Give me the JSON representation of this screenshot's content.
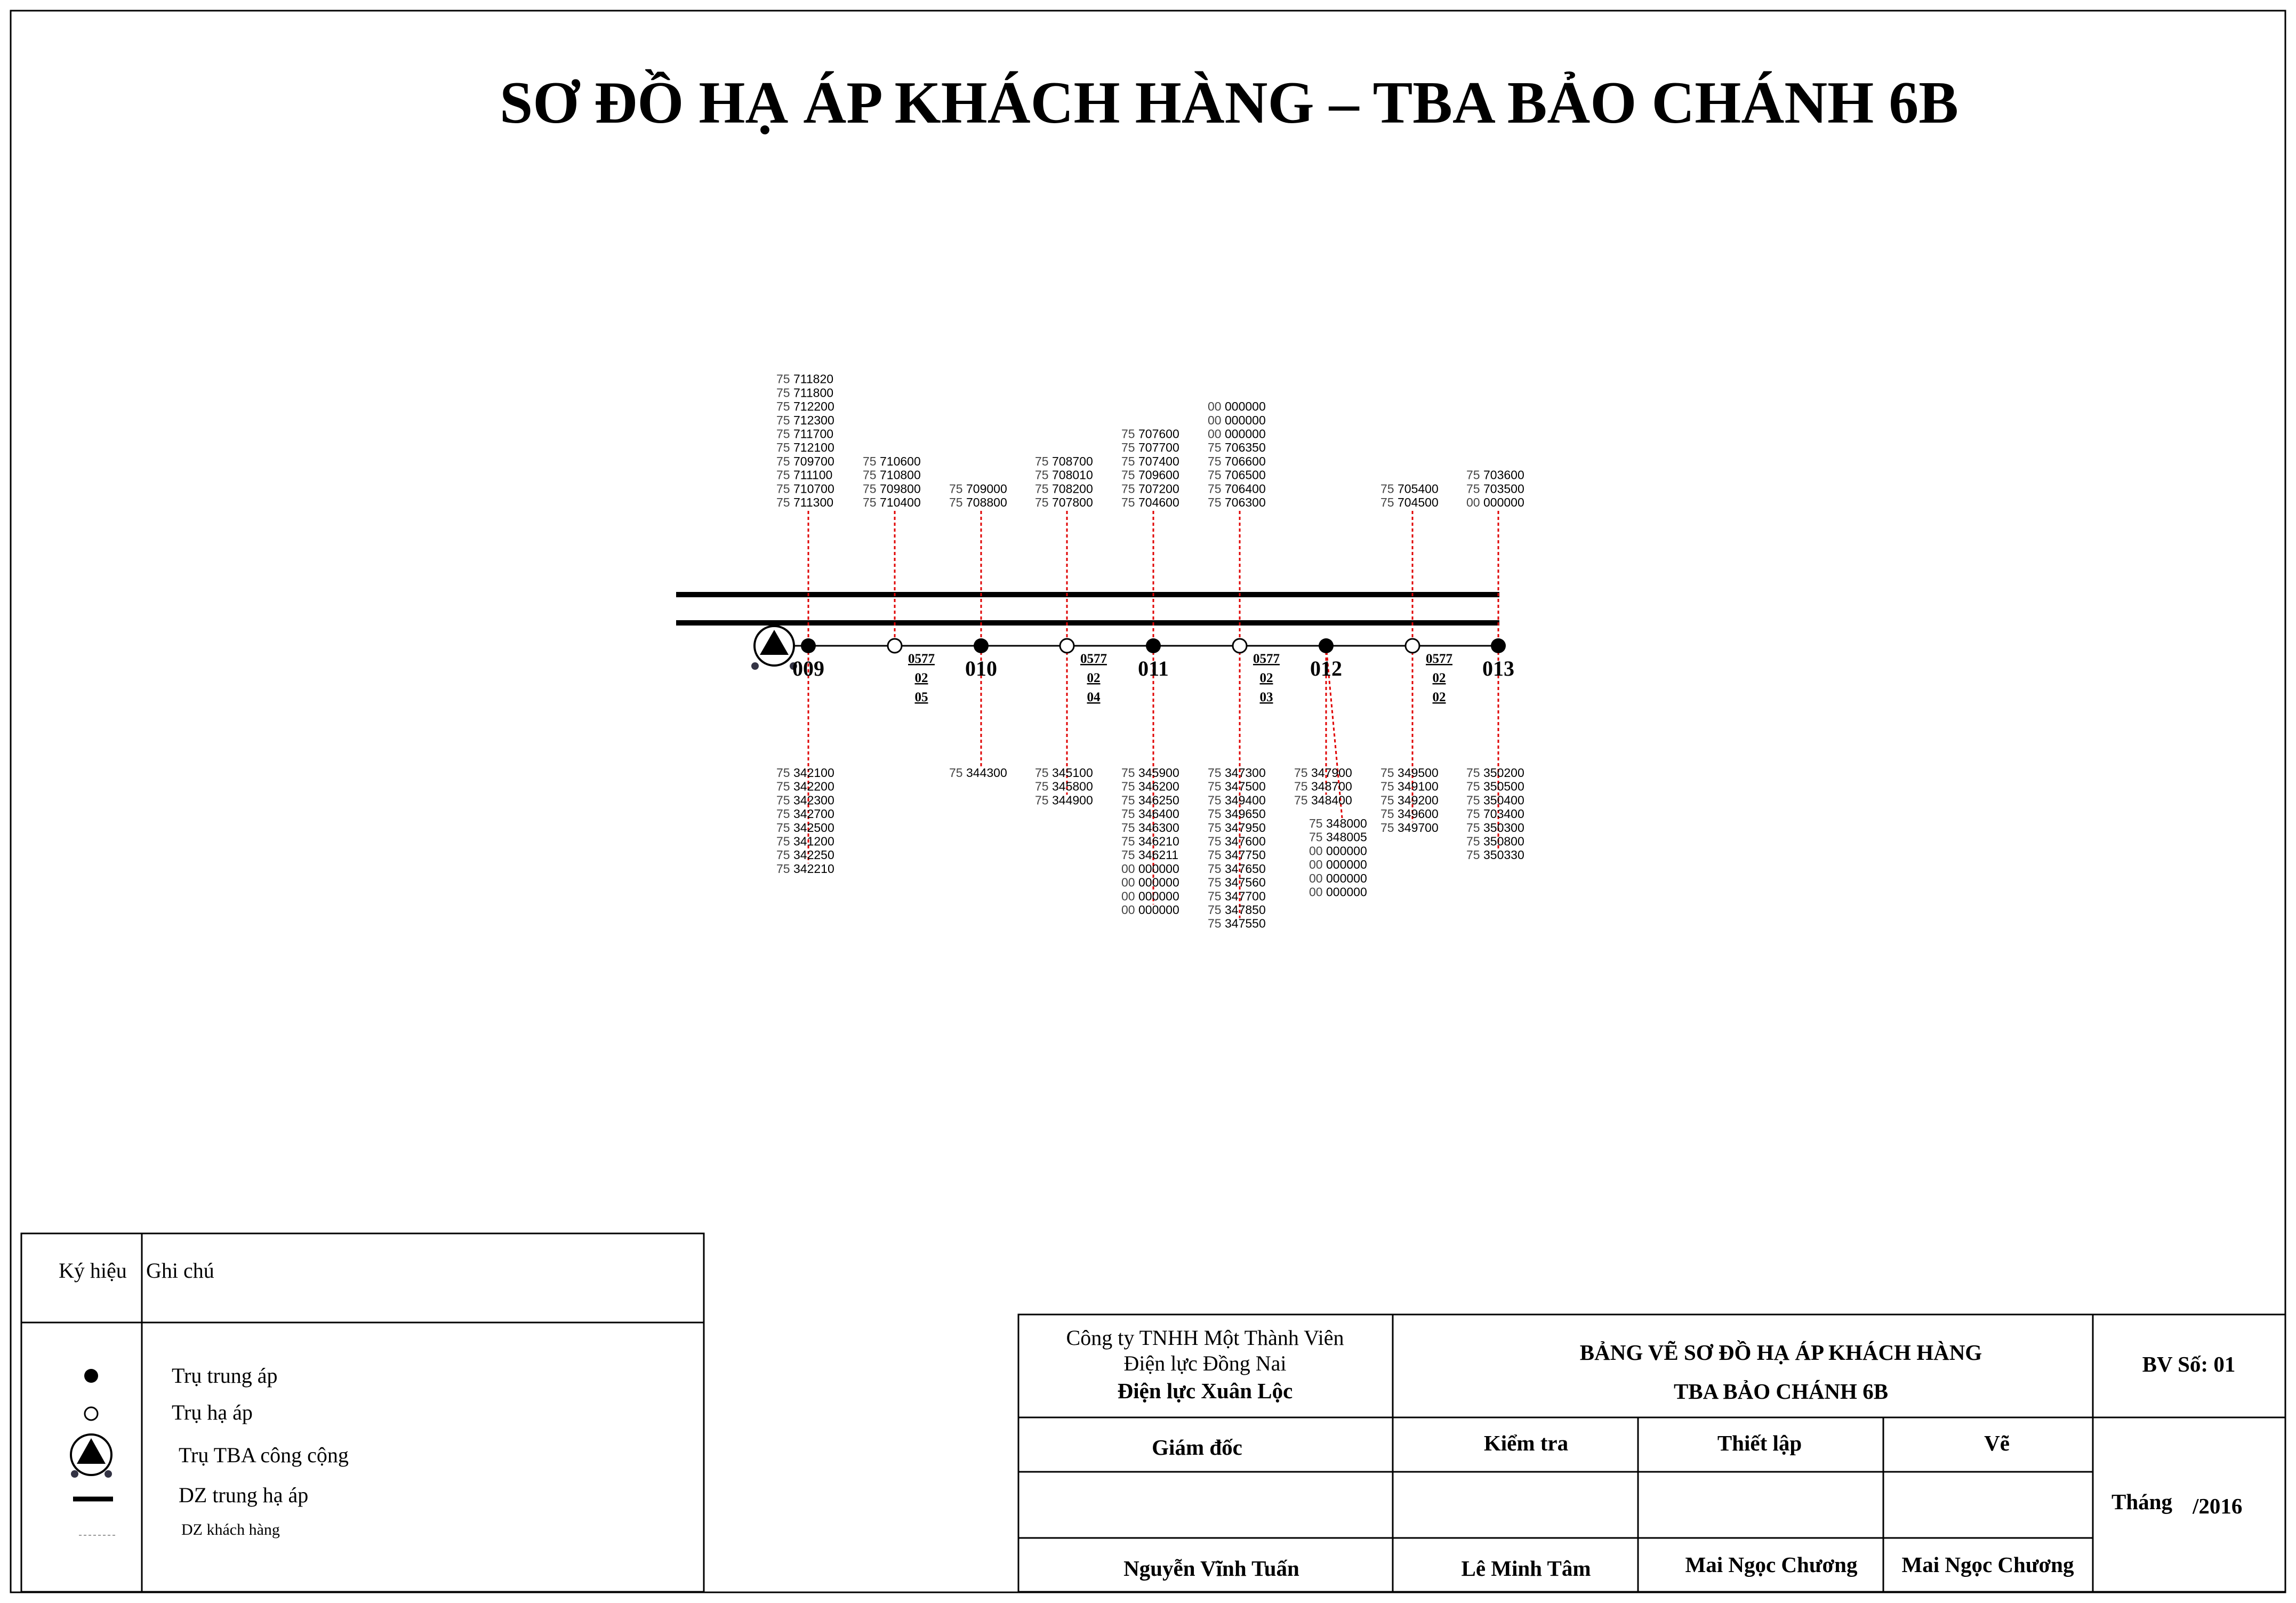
{
  "title": "SƠ ĐỒ HẠ ÁP KHÁCH HÀNG – TBA BẢO CHÁNH 6B",
  "colors": {
    "line": "#000000",
    "customer_line": "#e00000",
    "pole_fill": "#000000",
    "background": "#ffffff"
  },
  "poles": [
    {
      "type": "tba"
    },
    {
      "type": "medium",
      "label": "009"
    },
    {
      "type": "low",
      "branch": [
        "0577",
        "02",
        "05"
      ]
    },
    {
      "type": "medium",
      "label": "010"
    },
    {
      "type": "low",
      "branch": [
        "0577",
        "02",
        "04"
      ]
    },
    {
      "type": "medium",
      "label": "011"
    },
    {
      "type": "low",
      "branch": [
        "0577",
        "02",
        "03"
      ]
    },
    {
      "type": "medium",
      "label": "012"
    },
    {
      "type": "low",
      "branch": [
        "0577",
        "02",
        "02"
      ]
    },
    {
      "type": "medium",
      "label": "013"
    }
  ],
  "customers_top": [
    [
      "75 711820",
      "75 711800",
      "75 712200",
      "75 712300",
      "75 711700",
      "75 712100",
      "75 709700",
      "75 711100",
      "75 710700",
      "75 711300"
    ],
    [
      "75 710600",
      "75 710800",
      "75 709800",
      "75 710400"
    ],
    [
      "75 709000",
      "75 708800"
    ],
    [
      "75 708700",
      "75 708010",
      "75 708200",
      "75 707800"
    ],
    [
      "75 707600",
      "75 707700",
      "75 707400",
      "75 709600",
      "75 707200",
      "75 704600"
    ],
    [
      "00 000000",
      "00 000000",
      "00 000000",
      "75 706350",
      "75 706600",
      "75 706500",
      "75 706400",
      "75 706300"
    ],
    [],
    [
      "75 705400",
      "75 704500"
    ],
    [
      "75 703600",
      "75 703500",
      "00 000000"
    ]
  ],
  "customers_bottom": [
    [
      "75 342100",
      "75 342200",
      "75 342300",
      "75 342700",
      "75 342500",
      "75 341200",
      "75 342250",
      "75 342210"
    ],
    [],
    [
      "75 344300"
    ],
    [
      "75 345100",
      "75 345800",
      "75 344900"
    ],
    [
      "75 345900",
      "75 346200",
      "75 346250",
      "75 346400",
      "75 346300",
      "75 346210",
      "75 346211",
      "00 000000",
      "00 000000",
      "00 000000",
      "00 000000"
    ],
    [
      "75 347300",
      "75 347500",
      "75 349400",
      "75 349650",
      "75 347950",
      "75 347600",
      "75 347750",
      "75 347650",
      "75 347560",
      "75 347700",
      "75 347850",
      "75 347550"
    ],
    [
      "75 347900",
      "75 348700",
      "75 348400"
    ],
    [
      "75 349500",
      "75 349100",
      "75 349200",
      "75 349600",
      "75 349700"
    ],
    [
      "75 350200",
      "75 350500",
      "75 350400",
      "75 703400",
      "75 350300",
      "75 350800",
      "75 350330"
    ]
  ],
  "customers_bottom_extra": [
    "75 348000",
    "75 348005",
    "00 000000",
    "00 000000",
    "00 000000",
    "00 000000"
  ],
  "legend": {
    "col_symbol": "Ký hiệu",
    "col_note": "Ghi chú",
    "items": [
      {
        "icon": "medium-voltage-pole-icon",
        "text": "Trụ trung áp"
      },
      {
        "icon": "low-voltage-pole-icon",
        "text": "Trụ hạ áp"
      },
      {
        "icon": "public-substation-pole-icon",
        "text": "Trụ TBA công cộng"
      },
      {
        "icon": "medium-low-line-icon",
        "text": "DZ trung hạ áp"
      },
      {
        "icon": "customer-line-icon",
        "text": "DZ khách hàng"
      }
    ]
  },
  "title_block": {
    "company_line1": "Công ty TNHH Một Thành Viên",
    "company_line2": "Điện lực Đồng Nai",
    "company_line3": "Điện lực Xuân Lộc",
    "drawing_title1": "BẢNG VẼ SƠ ĐỒ HẠ ÁP KHÁCH HÀNG",
    "drawing_title2": "TBA BẢO CHÁNH 6B",
    "drawing_no": "BV Số: 01",
    "role_director": "Giám đốc",
    "role_check": "Kiểm tra",
    "role_setup": "Thiết lập",
    "role_draw": "Vẽ",
    "month_label": "Tháng",
    "year": "/2016",
    "name_director": "Nguyễn Vĩnh Tuấn",
    "name_check": "Lê Minh Tâm",
    "name_setup": "Mai Ngọc Chương",
    "name_draw": "Mai Ngọc Chương"
  }
}
